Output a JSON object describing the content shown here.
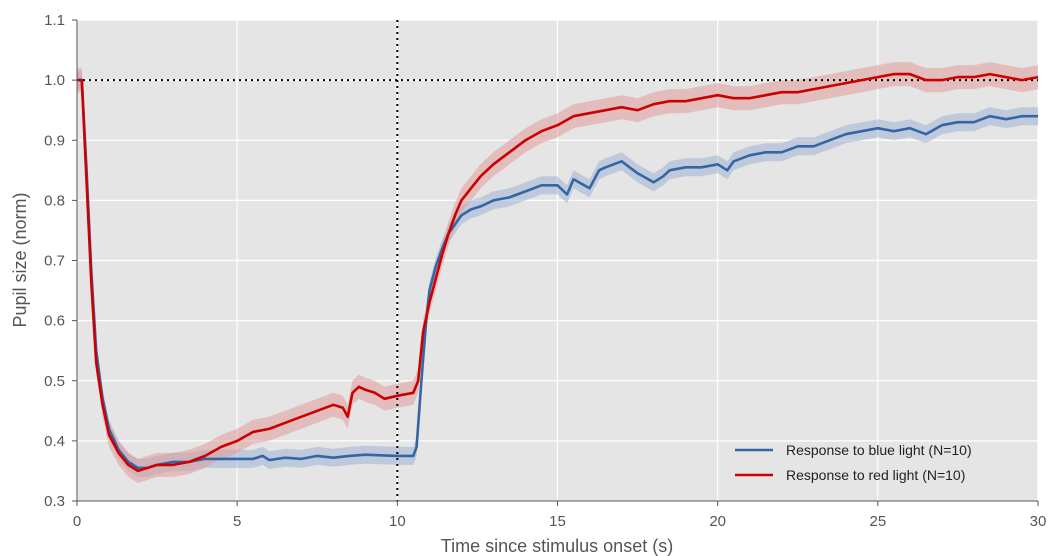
{
  "chart_data": {
    "type": "line",
    "title": "",
    "xlabel": "Time since stimulus onset (s)",
    "ylabel": "Pupil size (norm)",
    "xlim": [
      0,
      30
    ],
    "ylim": [
      0.3,
      1.1
    ],
    "xticks": [
      0,
      5,
      10,
      15,
      20,
      25,
      30
    ],
    "yticks": [
      0.3,
      0.4,
      0.5,
      0.6,
      0.7,
      0.8,
      0.9,
      1.0,
      1.1
    ],
    "xtick_labels": [
      "0",
      "5",
      "10",
      "15",
      "20",
      "25",
      "30"
    ],
    "ytick_labels": [
      "0.3",
      "0.4",
      "0.5",
      "0.6",
      "0.7",
      "0.8",
      "0.9",
      "1.0",
      "1.1"
    ],
    "grid": true,
    "background": "#e5e5e5",
    "reference_lines": {
      "vertical_x": 10,
      "horizontal_y": 1.0
    },
    "legend_position": "bottom-right",
    "series": [
      {
        "name": "Response to blue light (N=10)",
        "color": "#3465a4",
        "band_color": "#9fb4d3",
        "x": [
          0,
          0.15,
          0.3,
          0.45,
          0.6,
          0.8,
          1.0,
          1.3,
          1.6,
          1.9,
          2.2,
          2.5,
          3.0,
          3.5,
          4.0,
          4.5,
          5.0,
          5.5,
          5.8,
          6.0,
          6.5,
          7.0,
          7.5,
          8.0,
          8.5,
          9.0,
          9.5,
          10.0,
          10.5,
          10.6,
          10.75,
          10.9,
          11.0,
          11.2,
          11.4,
          11.6,
          11.8,
          12.0,
          12.3,
          12.6,
          13.0,
          13.5,
          14.0,
          14.5,
          15.0,
          15.3,
          15.5,
          16.0,
          16.3,
          16.5,
          17.0,
          17.5,
          18.0,
          18.3,
          18.5,
          19.0,
          19.5,
          20.0,
          20.3,
          20.5,
          21.0,
          21.5,
          22.0,
          22.5,
          23.0,
          23.5,
          24.0,
          24.5,
          25.0,
          25.5,
          26.0,
          26.5,
          27.0,
          27.5,
          28.0,
          28.5,
          29.0,
          29.5,
          30.0
        ],
        "y": [
          1.0,
          1.0,
          0.85,
          0.68,
          0.55,
          0.47,
          0.42,
          0.385,
          0.365,
          0.355,
          0.355,
          0.36,
          0.365,
          0.365,
          0.37,
          0.37,
          0.37,
          0.37,
          0.375,
          0.368,
          0.372,
          0.37,
          0.375,
          0.372,
          0.375,
          0.377,
          0.376,
          0.375,
          0.375,
          0.39,
          0.5,
          0.6,
          0.65,
          0.69,
          0.72,
          0.745,
          0.76,
          0.775,
          0.785,
          0.79,
          0.8,
          0.805,
          0.815,
          0.825,
          0.825,
          0.81,
          0.835,
          0.82,
          0.85,
          0.855,
          0.865,
          0.845,
          0.83,
          0.84,
          0.85,
          0.855,
          0.855,
          0.86,
          0.85,
          0.865,
          0.875,
          0.88,
          0.88,
          0.89,
          0.89,
          0.9,
          0.91,
          0.915,
          0.92,
          0.915,
          0.92,
          0.91,
          0.925,
          0.93,
          0.93,
          0.94,
          0.935,
          0.94,
          0.94
        ]
      },
      {
        "name": "Response to red light (N=10)",
        "color": "#cc0000",
        "band_color": "#e29a9a",
        "x": [
          0,
          0.15,
          0.3,
          0.45,
          0.6,
          0.8,
          1.0,
          1.3,
          1.6,
          1.9,
          2.2,
          2.5,
          3.0,
          3.5,
          4.0,
          4.5,
          5.0,
          5.5,
          6.0,
          6.5,
          7.0,
          7.5,
          8.0,
          8.3,
          8.45,
          8.6,
          8.8,
          9.0,
          9.3,
          9.6,
          10.0,
          10.5,
          10.65,
          10.8,
          11.0,
          11.2,
          11.4,
          11.6,
          11.8,
          12.0,
          12.3,
          12.6,
          13.0,
          13.5,
          14.0,
          14.5,
          15.0,
          15.5,
          16.0,
          16.5,
          17.0,
          17.5,
          18.0,
          18.5,
          19.0,
          19.5,
          20.0,
          20.5,
          21.0,
          21.5,
          22.0,
          22.5,
          23.0,
          23.5,
          24.0,
          24.5,
          25.0,
          25.5,
          26.0,
          26.5,
          27.0,
          27.5,
          28.0,
          28.5,
          29.0,
          29.5,
          30.0
        ],
        "y": [
          1.0,
          1.0,
          0.83,
          0.66,
          0.53,
          0.46,
          0.41,
          0.38,
          0.36,
          0.35,
          0.355,
          0.36,
          0.36,
          0.365,
          0.375,
          0.39,
          0.4,
          0.415,
          0.42,
          0.43,
          0.44,
          0.45,
          0.46,
          0.455,
          0.44,
          0.48,
          0.49,
          0.485,
          0.48,
          0.47,
          0.475,
          0.48,
          0.5,
          0.58,
          0.63,
          0.67,
          0.71,
          0.745,
          0.775,
          0.8,
          0.82,
          0.84,
          0.86,
          0.88,
          0.9,
          0.915,
          0.925,
          0.94,
          0.945,
          0.95,
          0.955,
          0.95,
          0.96,
          0.965,
          0.965,
          0.97,
          0.975,
          0.97,
          0.97,
          0.975,
          0.98,
          0.98,
          0.985,
          0.99,
          0.995,
          1.0,
          1.005,
          1.01,
          1.01,
          1.0,
          1.0,
          1.005,
          1.005,
          1.01,
          1.005,
          1.0,
          1.005
        ]
      }
    ]
  }
}
